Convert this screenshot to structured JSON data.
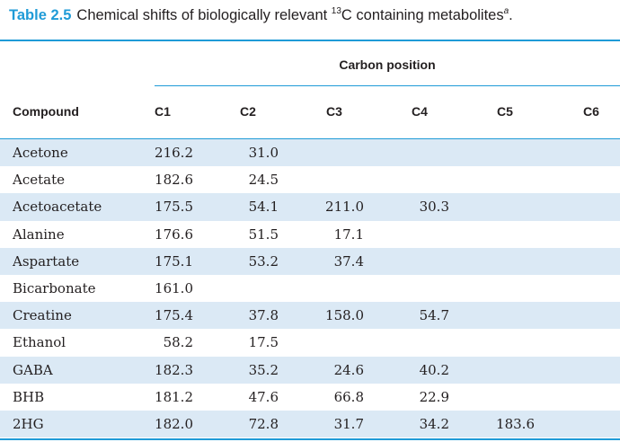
{
  "caption": {
    "label": "Table 2.5",
    "text_before_sup": "Chemical shifts of biologically relevant ",
    "superscript": "13",
    "text_after_sup": "C containing metabolites",
    "footnote_mark": "a",
    "end": "."
  },
  "header": {
    "span_label": "Carbon position",
    "compound_label": "Compound",
    "columns": [
      "C1",
      "C2",
      "C3",
      "C4",
      "C5",
      "C6"
    ]
  },
  "rows": [
    {
      "compound": "Acetone",
      "c1": "216.2",
      "c2": "31.0",
      "c3": "",
      "c4": "",
      "c5": "",
      "c6": ""
    },
    {
      "compound": "Acetate",
      "c1": "182.6",
      "c2": "24.5",
      "c3": "",
      "c4": "",
      "c5": "",
      "c6": ""
    },
    {
      "compound": "Acetoacetate",
      "c1": "175.5",
      "c2": "54.1",
      "c3": "211.0",
      "c4": "30.3",
      "c5": "",
      "c6": ""
    },
    {
      "compound": "Alanine",
      "c1": "176.6",
      "c2": "51.5",
      "c3": "17.1",
      "c4": "",
      "c5": "",
      "c6": ""
    },
    {
      "compound": "Aspartate",
      "c1": "175.1",
      "c2": "53.2",
      "c3": "37.4",
      "c4": "",
      "c5": "",
      "c6": ""
    },
    {
      "compound": "Bicarbonate",
      "c1": "161.0",
      "c2": "",
      "c3": "",
      "c4": "",
      "c5": "",
      "c6": ""
    },
    {
      "compound": "Creatine",
      "c1": "175.4",
      "c2": "37.8",
      "c3": "158.0",
      "c4": "54.7",
      "c5": "",
      "c6": ""
    },
    {
      "compound": "Ethanol",
      "c1": "58.2",
      "c2": "17.5",
      "c3": "",
      "c4": "",
      "c5": "",
      "c6": ""
    },
    {
      "compound": "GABA",
      "c1": "182.3",
      "c2": "35.2",
      "c3": "24.6",
      "c4": "40.2",
      "c5": "",
      "c6": ""
    },
    {
      "compound": "BHB",
      "c1": "181.2",
      "c2": "47.6",
      "c3": "66.8",
      "c4": "22.9",
      "c5": "",
      "c6": ""
    },
    {
      "compound": "2HG",
      "c1": "182.0",
      "c2": "72.8",
      "c3": "31.7",
      "c4": "34.2",
      "c5": "183.6",
      "c6": ""
    }
  ],
  "colors": {
    "accent": "#1f9bd7",
    "stripe": "#dbe9f5",
    "text": "#231f20"
  }
}
